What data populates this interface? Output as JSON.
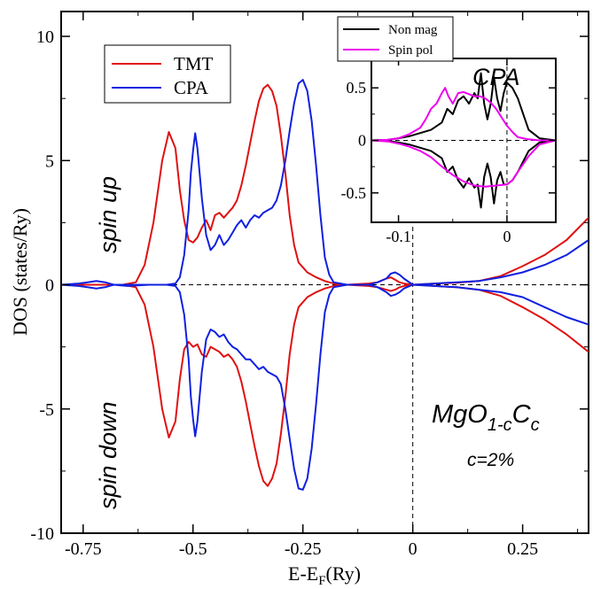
{
  "chart_data": [
    {
      "type": "line",
      "xlabel": "E-E",
      "xlabel_sub": "F",
      "xlabel_unit": "(Ry)",
      "ylabel": "DOS (states/Ry)",
      "xlim": [
        -0.8,
        0.4
      ],
      "ylim": [
        -10,
        11
      ],
      "x_ticks": [
        -0.75,
        -0.5,
        -0.25,
        0,
        0.25
      ],
      "x_tick_labels": [
        "-0.75",
        "-0.5",
        "-0.25",
        "0",
        "0.25"
      ],
      "y_ticks": [
        -10,
        -5,
        0,
        5,
        10
      ],
      "y_tick_labels": [
        "-10",
        "-5",
        "0",
        "5",
        "10"
      ],
      "legend": {
        "position": "top-left",
        "entries": [
          "TMT",
          "CPA"
        ]
      },
      "series": [
        {
          "name": "TMT",
          "color": "#e01010",
          "up": {
            "x": [
              -0.8,
              -0.75,
              -0.7,
              -0.66,
              -0.63,
              -0.61,
              -0.59,
              -0.57,
              -0.555,
              -0.54,
              -0.53,
              -0.52,
              -0.51,
              -0.5,
              -0.49,
              -0.48,
              -0.47,
              -0.46,
              -0.45,
              -0.44,
              -0.43,
              -0.42,
              -0.41,
              -0.4,
              -0.39,
              -0.38,
              -0.37,
              -0.36,
              -0.35,
              -0.34,
              -0.33,
              -0.32,
              -0.31,
              -0.3,
              -0.29,
              -0.28,
              -0.27,
              -0.26,
              -0.24,
              -0.22,
              -0.2,
              -0.18,
              -0.15,
              -0.1,
              -0.08,
              -0.06,
              -0.05,
              -0.04,
              -0.03,
              -0.02,
              0,
              0.05,
              0.1,
              0.15,
              0.2,
              0.25,
              0.3,
              0.35,
              0.4
            ],
            "y": [
              0,
              0,
              0,
              0,
              0.1,
              0.8,
              2.5,
              5,
              6.15,
              5.5,
              3.8,
              2.6,
              1.8,
              1.7,
              1.9,
              2.3,
              2.6,
              2.2,
              2.8,
              2.9,
              2.7,
              2.9,
              3.1,
              3.4,
              4,
              4.8,
              5.7,
              6.6,
              7.4,
              7.9,
              8.05,
              7.8,
              7.2,
              6,
              4.5,
              2.8,
              1.6,
              0.9,
              0.5,
              0.3,
              0.15,
              0.05,
              0,
              0.05,
              0.1,
              0.25,
              0.3,
              0.2,
              0.1,
              0.05,
              0,
              0.05,
              0.08,
              0.15,
              0.35,
              0.75,
              1.2,
              1.8,
              2.7
            ]
          },
          "down": {
            "x": [
              -0.8,
              -0.75,
              -0.7,
              -0.66,
              -0.63,
              -0.61,
              -0.59,
              -0.57,
              -0.555,
              -0.54,
              -0.53,
              -0.52,
              -0.51,
              -0.5,
              -0.49,
              -0.48,
              -0.47,
              -0.46,
              -0.45,
              -0.44,
              -0.43,
              -0.42,
              -0.41,
              -0.4,
              -0.39,
              -0.38,
              -0.37,
              -0.36,
              -0.35,
              -0.34,
              -0.33,
              -0.32,
              -0.31,
              -0.3,
              -0.29,
              -0.28,
              -0.27,
              -0.26,
              -0.24,
              -0.22,
              -0.2,
              -0.18,
              -0.15,
              -0.1,
              -0.08,
              -0.06,
              -0.05,
              -0.04,
              -0.03,
              -0.02,
              0,
              0.05,
              0.1,
              0.15,
              0.2,
              0.25,
              0.3,
              0.35,
              0.4
            ],
            "y": [
              0,
              0,
              0,
              0,
              -0.1,
              -0.8,
              -2.5,
              -5,
              -6.15,
              -5.5,
              -3.8,
              -2.6,
              -2.3,
              -2.5,
              -2.4,
              -2.8,
              -2.9,
              -2.5,
              -2.6,
              -2.7,
              -2.9,
              -2.8,
              -3.0,
              -3.3,
              -3.9,
              -4.7,
              -5.6,
              -6.5,
              -7.3,
              -7.9,
              -8.1,
              -7.8,
              -7.2,
              -6,
              -4.5,
              -2.8,
              -1.6,
              -0.9,
              -0.5,
              -0.3,
              -0.15,
              -0.05,
              0,
              -0.05,
              -0.1,
              -0.2,
              -0.25,
              -0.2,
              -0.1,
              -0.05,
              0,
              -0.05,
              -0.1,
              -0.2,
              -0.45,
              -0.9,
              -1.4,
              -2.0,
              -2.7
            ]
          }
        },
        {
          "name": "CPA",
          "color": "#1020e0",
          "up": {
            "x": [
              -0.8,
              -0.76,
              -0.74,
              -0.72,
              -0.7,
              -0.68,
              -0.65,
              -0.6,
              -0.56,
              -0.54,
              -0.53,
              -0.52,
              -0.51,
              -0.505,
              -0.5,
              -0.495,
              -0.49,
              -0.48,
              -0.47,
              -0.46,
              -0.45,
              -0.44,
              -0.43,
              -0.42,
              -0.41,
              -0.4,
              -0.39,
              -0.38,
              -0.37,
              -0.36,
              -0.35,
              -0.34,
              -0.33,
              -0.32,
              -0.31,
              -0.3,
              -0.29,
              -0.28,
              -0.27,
              -0.26,
              -0.25,
              -0.24,
              -0.23,
              -0.22,
              -0.21,
              -0.2,
              -0.19,
              -0.18,
              -0.15,
              -0.1,
              -0.08,
              -0.06,
              -0.05,
              -0.04,
              -0.03,
              -0.02,
              0,
              0.05,
              0.1,
              0.15,
              0.2,
              0.25,
              0.3,
              0.35,
              0.4
            ],
            "y": [
              0,
              0.05,
              0.1,
              0.15,
              0.1,
              0,
              -0.05,
              0,
              0,
              0.05,
              0.3,
              1.2,
              3.0,
              4.5,
              5.4,
              6.1,
              5.5,
              3.5,
              2.0,
              1.4,
              1.6,
              2.0,
              1.6,
              1.8,
              2.1,
              2.4,
              2.6,
              2.3,
              2.6,
              2.8,
              2.7,
              2.9,
              3.0,
              3.1,
              3.4,
              4.0,
              5.0,
              6.2,
              7.3,
              8.1,
              8.25,
              7.8,
              6.6,
              4.8,
              2.8,
              1.1,
              0.4,
              0.1,
              0,
              0,
              0.1,
              0.25,
              0.45,
              0.5,
              0.4,
              0.25,
              0,
              0.05,
              0.1,
              0.15,
              0.3,
              0.5,
              0.8,
              1.2,
              1.8
            ]
          },
          "down": {
            "x": [
              -0.8,
              -0.76,
              -0.74,
              -0.72,
              -0.7,
              -0.68,
              -0.65,
              -0.6,
              -0.56,
              -0.54,
              -0.53,
              -0.52,
              -0.51,
              -0.505,
              -0.5,
              -0.495,
              -0.49,
              -0.48,
              -0.47,
              -0.46,
              -0.45,
              -0.44,
              -0.43,
              -0.42,
              -0.41,
              -0.4,
              -0.39,
              -0.38,
              -0.37,
              -0.36,
              -0.35,
              -0.34,
              -0.33,
              -0.32,
              -0.31,
              -0.3,
              -0.29,
              -0.28,
              -0.27,
              -0.26,
              -0.25,
              -0.24,
              -0.23,
              -0.22,
              -0.21,
              -0.2,
              -0.19,
              -0.18,
              -0.15,
              -0.1,
              -0.08,
              -0.06,
              -0.05,
              -0.04,
              -0.03,
              -0.02,
              0,
              0.05,
              0.1,
              0.15,
              0.2,
              0.25,
              0.3,
              0.35,
              0.4
            ],
            "y": [
              0,
              -0.05,
              -0.1,
              -0.15,
              -0.1,
              0,
              0,
              0,
              0,
              -0.05,
              -0.3,
              -1.2,
              -3.0,
              -4.5,
              -5.4,
              -6.1,
              -5.5,
              -3.5,
              -2.2,
              -1.8,
              -1.9,
              -2.1,
              -2.0,
              -2.3,
              -2.5,
              -2.6,
              -2.8,
              -3.0,
              -3.0,
              -3.2,
              -3.4,
              -3.3,
              -3.5,
              -3.6,
              -3.7,
              -4.0,
              -5.0,
              -6.2,
              -7.4,
              -8.2,
              -8.25,
              -7.8,
              -6.6,
              -4.8,
              -2.8,
              -1.1,
              -0.4,
              -0.1,
              0,
              0,
              -0.1,
              -0.3,
              -0.45,
              -0.4,
              -0.3,
              -0.15,
              0,
              -0.05,
              -0.1,
              -0.2,
              -0.3,
              -0.5,
              -0.9,
              -1.3,
              -1.6
            ]
          }
        }
      ],
      "annotations": {
        "spin_up": "spin up",
        "spin_down": "spin down",
        "formula_base": "MgO",
        "formula_sub1": "1-c",
        "formula_mid": "C",
        "formula_sub2": "c",
        "concentration": "c=2%"
      }
    },
    {
      "type": "line",
      "title": "CPA",
      "xlim": [
        -0.125,
        0.045
      ],
      "ylim": [
        -0.78,
        0.78
      ],
      "x_ticks": [
        -0.1,
        0
      ],
      "x_tick_labels": [
        "-0.1",
        "0"
      ],
      "y_ticks": [
        -0.5,
        0,
        0.5
      ],
      "y_tick_labels": [
        "-0.5",
        "0",
        "0.5"
      ],
      "legend": {
        "position": "top-left",
        "entries": [
          "Non mag",
          "Spin pol"
        ]
      },
      "series": [
        {
          "name": "Non mag",
          "color": "#000000",
          "up": {
            "x": [
              -0.125,
              -0.11,
              -0.1,
              -0.09,
              -0.08,
              -0.07,
              -0.06,
              -0.055,
              -0.05,
              -0.045,
              -0.04,
              -0.035,
              -0.03,
              -0.027,
              -0.024,
              -0.021,
              -0.018,
              -0.015,
              -0.012,
              -0.009,
              -0.006,
              -0.003,
              0,
              0.005,
              0.01,
              0.015,
              0.02,
              0.03,
              0.045
            ],
            "y": [
              0,
              0.005,
              0.02,
              0.04,
              0.07,
              0.1,
              0.17,
              0.3,
              0.25,
              0.38,
              0.42,
              0.35,
              0.45,
              0.4,
              0.64,
              0.35,
              0.2,
              0.35,
              0.6,
              0.4,
              0.28,
              0.45,
              0.55,
              0.5,
              0.4,
              0.25,
              0.1,
              0.02,
              0
            ]
          },
          "down": {
            "x": [
              -0.125,
              -0.11,
              -0.1,
              -0.09,
              -0.08,
              -0.07,
              -0.06,
              -0.055,
              -0.05,
              -0.045,
              -0.04,
              -0.035,
              -0.03,
              -0.027,
              -0.024,
              -0.021,
              -0.018,
              -0.015,
              -0.012,
              -0.009,
              -0.006,
              -0.003,
              0,
              0.005,
              0.01,
              0.015,
              0.02,
              0.03,
              0.045
            ],
            "y": [
              0,
              -0.005,
              -0.02,
              -0.04,
              -0.07,
              -0.1,
              -0.17,
              -0.3,
              -0.25,
              -0.38,
              -0.45,
              -0.36,
              -0.45,
              -0.42,
              -0.64,
              -0.35,
              -0.22,
              -0.35,
              -0.6,
              -0.38,
              -0.3,
              -0.42,
              -0.42,
              -0.38,
              -0.3,
              -0.2,
              -0.1,
              -0.02,
              0
            ]
          }
        },
        {
          "name": "Spin pol",
          "color": "#ee00ee",
          "up": {
            "x": [
              -0.125,
              -0.11,
              -0.1,
              -0.09,
              -0.08,
              -0.075,
              -0.07,
              -0.065,
              -0.06,
              -0.057,
              -0.054,
              -0.05,
              -0.045,
              -0.04,
              -0.035,
              -0.03,
              -0.025,
              -0.02,
              -0.015,
              -0.01,
              -0.005,
              0,
              0.005,
              0.01,
              0.02,
              0.03,
              0.045
            ],
            "y": [
              0,
              0.005,
              0.02,
              0.06,
              0.12,
              0.2,
              0.3,
              0.35,
              0.45,
              0.5,
              0.42,
              0.35,
              0.45,
              0.46,
              0.44,
              0.42,
              0.42,
              0.4,
              0.36,
              0.3,
              0.22,
              0.14,
              0.08,
              0.03,
              0.01,
              0,
              0
            ]
          },
          "down": {
            "x": [
              -0.125,
              -0.11,
              -0.1,
              -0.09,
              -0.08,
              -0.07,
              -0.06,
              -0.05,
              -0.04,
              -0.03,
              -0.02,
              -0.01,
              0,
              0.005,
              0.01,
              0.02,
              0.03,
              0.045
            ],
            "y": [
              0,
              -0.01,
              -0.03,
              -0.06,
              -0.1,
              -0.16,
              -0.25,
              -0.33,
              -0.39,
              -0.43,
              -0.44,
              -0.43,
              -0.42,
              -0.38,
              -0.3,
              -0.15,
              -0.04,
              0
            ]
          }
        }
      ]
    }
  ]
}
